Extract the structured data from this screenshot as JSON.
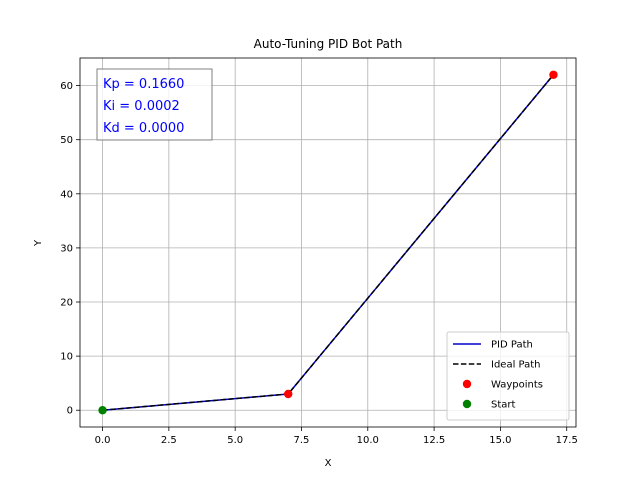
{
  "chart_data": {
    "type": "line",
    "title": "Auto-Tuning PID Bot Path",
    "xlabel": "X",
    "ylabel": "Y",
    "xlim": [
      -0.85,
      17.85
    ],
    "ylim": [
      -3.1,
      65.1
    ],
    "xticks": [
      0.0,
      2.5,
      5.0,
      7.5,
      10.0,
      12.5,
      15.0,
      17.5
    ],
    "xtick_labels": [
      "0.0",
      "2.5",
      "5.0",
      "7.5",
      "10.0",
      "12.5",
      "15.0",
      "17.5"
    ],
    "yticks": [
      0,
      10,
      20,
      30,
      40,
      50,
      60
    ],
    "ytick_labels": [
      "0",
      "10",
      "20",
      "30",
      "40",
      "50",
      "60"
    ],
    "grid": true,
    "legend_position": "lower-right",
    "series": [
      {
        "name": "PID Path",
        "kind": "line",
        "style": "solid",
        "color": "#0000cd",
        "x": [
          0,
          7,
          17
        ],
        "y": [
          0,
          3,
          62
        ]
      },
      {
        "name": "Ideal Path",
        "kind": "line",
        "style": "dashed",
        "color": "#000000",
        "x": [
          0,
          7,
          17
        ],
        "y": [
          0,
          3,
          62
        ]
      },
      {
        "name": "Waypoints",
        "kind": "scatter",
        "color": "#ff0000",
        "x": [
          7,
          17
        ],
        "y": [
          3,
          62
        ]
      },
      {
        "name": "Start",
        "kind": "scatter",
        "color": "#008000",
        "x": [
          0
        ],
        "y": [
          0
        ]
      }
    ],
    "annotation": {
      "lines": [
        "Kp = 0.1660",
        "Ki = 0.0002",
        "Kd = 0.0000"
      ],
      "color": "#0000ff",
      "position": "top-left"
    }
  }
}
